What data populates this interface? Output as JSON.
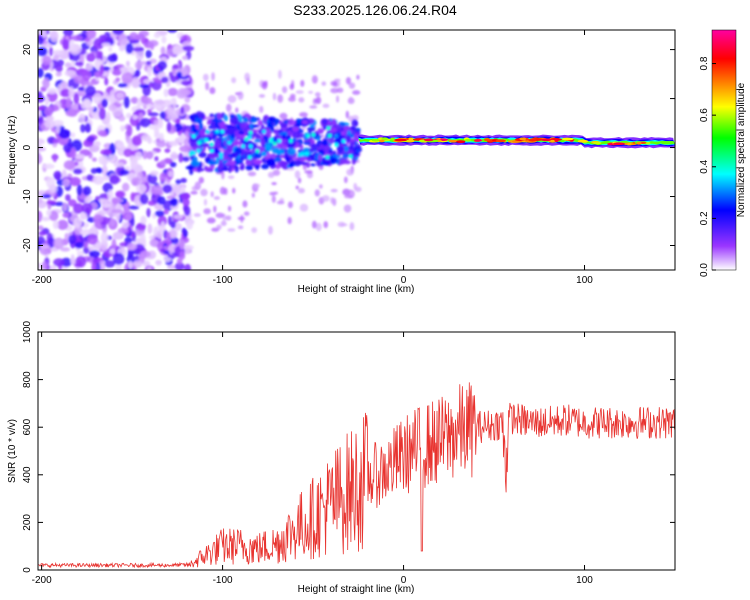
{
  "page": {
    "title": "S233.2025.126.06.24.R04"
  },
  "chart_data": [
    {
      "type": "heatmap",
      "xlabel": "Height of straight line (km)",
      "ylabel": "Frequency (Hz)",
      "xlim": [
        -202,
        150
      ],
      "ylim": [
        -25,
        24
      ],
      "xticks": [
        -200,
        -100,
        0,
        100
      ],
      "yticks": [
        -20,
        -10,
        0,
        10,
        20
      ],
      "colorbar": {
        "label": "Normalized spectral amplitude",
        "range": [
          0,
          0.93
        ],
        "ticks": [
          0.0,
          0.2,
          0.4,
          0.6,
          0.8
        ],
        "colormap": [
          "#ffffff",
          "#9a36ff",
          "#0000ff",
          "#00ffff",
          "#00ff00",
          "#ffff00",
          "#ff8000",
          "#ff0000",
          "#ff00a0"
        ]
      },
      "regions": [
        {
          "x_range": [
            -202,
            -118
          ],
          "y_range": [
            -25,
            24
          ],
          "amplitude": 0.1,
          "description_level": "diffuse"
        },
        {
          "x_range": [
            -118,
            -25
          ],
          "y_range": [
            -5,
            7
          ],
          "amplitude": 0.2
        },
        {
          "x_range": [
            -25,
            150
          ],
          "center_hz": [
            1.5,
            1.5,
            1.0
          ],
          "amplitude": 0.8
        }
      ]
    },
    {
      "type": "line",
      "xlabel": "Height of straight line (km)",
      "ylabel": "SNR (10 * v/v)",
      "xlim": [
        -202,
        150
      ],
      "ylim": [
        0,
        1000
      ],
      "xticks": [
        -200,
        -100,
        0,
        100
      ],
      "yticks": [
        0,
        200,
        400,
        600,
        800,
        1000
      ],
      "series": [
        {
          "color": "#e8332f",
          "x": [
            -202,
            -190,
            -170,
            -150,
            -130,
            -118,
            -110,
            -100,
            -90,
            -80,
            -70,
            -60,
            -50,
            -40,
            -30,
            -20,
            -10,
            0,
            10,
            20,
            30,
            40,
            50,
            55,
            57,
            60,
            70,
            80,
            90,
            100,
            110,
            120,
            130,
            140,
            150
          ],
          "values": [
            20,
            20,
            20,
            20,
            20,
            22,
            60,
            100,
            100,
            90,
            110,
            170,
            220,
            280,
            330,
            380,
            420,
            480,
            520,
            540,
            580,
            600,
            610,
            620,
            630,
            640,
            620,
            620,
            630,
            620,
            620,
            620,
            620,
            620,
            620
          ]
        }
      ]
    }
  ]
}
